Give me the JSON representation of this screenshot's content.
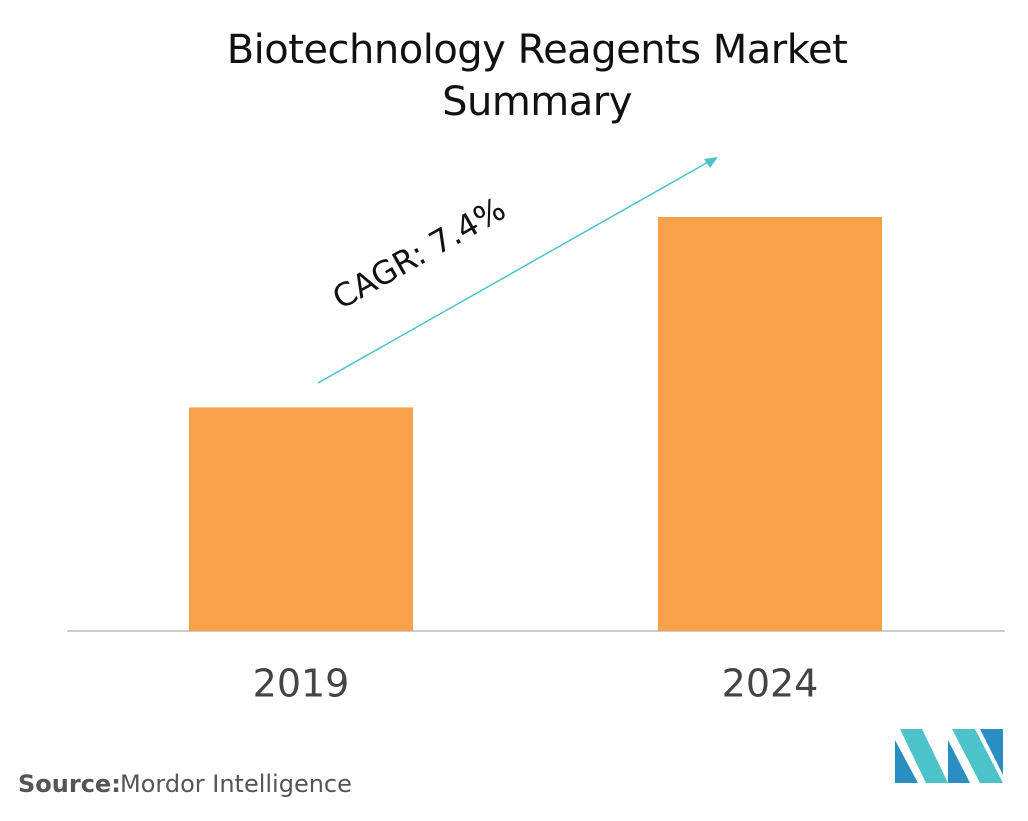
{
  "chart_data": {
    "type": "bar",
    "title": "Biotechnology Reagents Market Summary",
    "categories": [
      "2019",
      "2024"
    ],
    "values": [
      54,
      100
    ],
    "color": "#f9a04a",
    "ylim": [
      0,
      100
    ],
    "annotation": "CAGR: 7.4%",
    "source_label": "Source:",
    "source": "Mordor Intelligence"
  }
}
